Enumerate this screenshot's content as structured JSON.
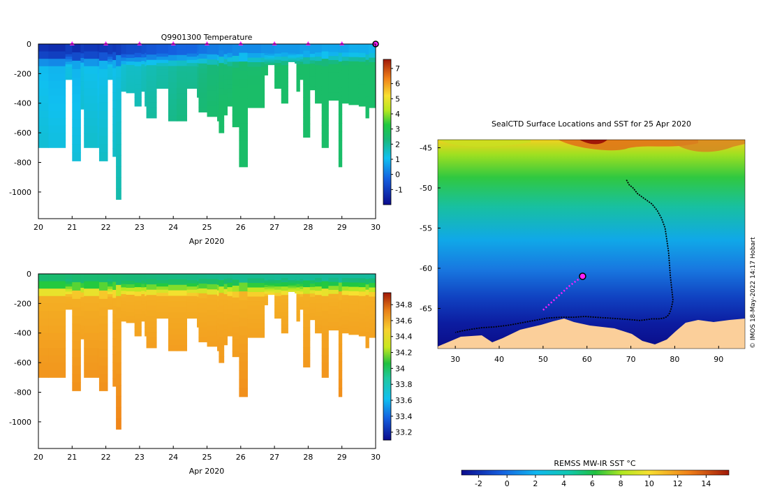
{
  "copyright": "© IMOS 18-May-2022 14:17 Hobart",
  "chart_data": [
    {
      "id": "temperature",
      "type": "heatmap",
      "title": "Q9901300  Temperature",
      "xlabel": "Apr 2020",
      "ylabel": "",
      "xlim": [
        20,
        30
      ],
      "ylim": [
        -1180,
        0
      ],
      "x_ticks": [
        "20",
        "21",
        "22",
        "23",
        "24",
        "25",
        "26",
        "27",
        "28",
        "29",
        "30"
      ],
      "y_ticks": [
        "0",
        "-200",
        "-400",
        "-600",
        "-800",
        "-1000"
      ],
      "y_tick_values": [
        0,
        -200,
        -400,
        -600,
        -800,
        -1000
      ],
      "surface_markers_day": [
        21,
        22,
        23,
        24,
        25,
        26,
        27,
        28,
        29
      ],
      "colorbar": {
        "min": -2,
        "max": 7.6,
        "ticks": [
          7,
          6,
          5,
          4,
          3,
          2,
          1,
          0,
          -1
        ]
      },
      "profiles": [
        {
          "day": 20.0,
          "depth": 700,
          "surface": -1.2
        },
        {
          "day": 20.3,
          "depth": 700,
          "surface": -1.3
        },
        {
          "day": 20.8,
          "depth": 240,
          "surface": -1.0
        },
        {
          "day": 21.0,
          "depth": 790,
          "surface": -1.3
        },
        {
          "day": 21.25,
          "depth": 440,
          "surface": -1.0
        },
        {
          "day": 21.35,
          "depth": 700,
          "surface": -1.1
        },
        {
          "day": 21.75,
          "depth": 700,
          "surface": -1.2
        },
        {
          "day": 21.8,
          "depth": 790,
          "surface": -1.1
        },
        {
          "day": 22.05,
          "depth": 240,
          "surface": -1.0
        },
        {
          "day": 22.2,
          "depth": 760,
          "surface": -1.1
        },
        {
          "day": 22.3,
          "depth": 1050,
          "surface": -1.0
        },
        {
          "day": 22.45,
          "depth": 320,
          "surface": -0.8
        },
        {
          "day": 22.6,
          "depth": 330,
          "surface": -0.7
        },
        {
          "day": 22.85,
          "depth": 420,
          "surface": -0.7
        },
        {
          "day": 23.05,
          "depth": 320,
          "surface": -0.6
        },
        {
          "day": 23.15,
          "depth": 420,
          "surface": -0.6
        },
        {
          "day": 23.2,
          "depth": 500,
          "surface": -0.5
        },
        {
          "day": 23.5,
          "depth": 300,
          "surface": -0.4
        },
        {
          "day": 23.85,
          "depth": 520,
          "surface": -0.3
        },
        {
          "day": 24.1,
          "depth": 520,
          "surface": -0.2
        },
        {
          "day": 24.4,
          "depth": 300,
          "surface": -0.2
        },
        {
          "day": 24.7,
          "depth": 360,
          "surface": -0.1
        },
        {
          "day": 24.75,
          "depth": 460,
          "surface": 0.0
        },
        {
          "day": 25.0,
          "depth": 490,
          "surface": 0.1
        },
        {
          "day": 25.3,
          "depth": 520,
          "surface": 0.1
        },
        {
          "day": 25.35,
          "depth": 600,
          "surface": 0.2
        },
        {
          "day": 25.5,
          "depth": 480,
          "surface": 0.2
        },
        {
          "day": 25.6,
          "depth": 420,
          "surface": 0.2
        },
        {
          "day": 25.75,
          "depth": 560,
          "surface": 0.3
        },
        {
          "day": 25.95,
          "depth": 830,
          "surface": 0.3
        },
        {
          "day": 26.2,
          "depth": 430,
          "surface": 0.3
        },
        {
          "day": 26.6,
          "depth": 430,
          "surface": 0.4
        },
        {
          "day": 26.7,
          "depth": 210,
          "surface": 0.4
        },
        {
          "day": 26.8,
          "depth": 140,
          "surface": 0.4
        },
        {
          "day": 27.0,
          "depth": 300,
          "surface": 0.5
        },
        {
          "day": 27.2,
          "depth": 400,
          "surface": 0.5
        },
        {
          "day": 27.4,
          "depth": 120,
          "surface": 0.5
        },
        {
          "day": 27.6,
          "depth": 130,
          "surface": 0.5
        },
        {
          "day": 27.65,
          "depth": 320,
          "surface": 0.5
        },
        {
          "day": 27.75,
          "depth": 240,
          "surface": 0.6
        },
        {
          "day": 27.85,
          "depth": 630,
          "surface": 0.6
        },
        {
          "day": 28.05,
          "depth": 310,
          "surface": 0.6
        },
        {
          "day": 28.2,
          "depth": 400,
          "surface": 0.6
        },
        {
          "day": 28.4,
          "depth": 700,
          "surface": 0.7
        },
        {
          "day": 28.6,
          "depth": 380,
          "surface": 0.7
        },
        {
          "day": 28.9,
          "depth": 830,
          "surface": 0.7
        },
        {
          "day": 29.0,
          "depth": 400,
          "surface": 0.7
        },
        {
          "day": 29.2,
          "depth": 410,
          "surface": 0.8
        },
        {
          "day": 29.5,
          "depth": 420,
          "surface": 0.8
        },
        {
          "day": 29.7,
          "depth": 500,
          "surface": 0.8
        },
        {
          "day": 29.8,
          "depth": 430,
          "surface": 0.9
        },
        {
          "day": 30.0,
          "depth": 410,
          "surface": 0.9
        }
      ]
    },
    {
      "id": "salinity",
      "type": "heatmap",
      "title": "",
      "xlabel": "Apr 2020",
      "ylabel": "",
      "xlim": [
        20,
        30
      ],
      "ylim": [
        -1180,
        0
      ],
      "x_ticks": [
        "20",
        "21",
        "22",
        "23",
        "24",
        "25",
        "26",
        "27",
        "28",
        "29",
        "30"
      ],
      "y_ticks": [
        "0",
        "-200",
        "-400",
        "-600",
        "-800",
        "-1000"
      ],
      "y_tick_values": [
        0,
        -200,
        -400,
        -600,
        -800,
        -1000
      ],
      "colorbar": {
        "min": 33.1,
        "max": 34.95,
        "ticks": [
          "34.8",
          "34.6",
          "34.4",
          "34.2",
          "34",
          "33.8",
          "33.6",
          "33.4",
          "33.2"
        ]
      }
    },
    {
      "id": "sst_map",
      "type": "heatmap",
      "title": "SealCTD Surface Locations and SST for 25 Apr 2020",
      "xlabel": "",
      "ylabel": "",
      "xlim": [
        26,
        96
      ],
      "ylim": [
        -70,
        -44
      ],
      "x_ticks": [
        "30",
        "40",
        "50",
        "60",
        "70",
        "80",
        "90"
      ],
      "x_tick_values": [
        30,
        40,
        50,
        60,
        70,
        80,
        90
      ],
      "y_ticks": [
        "-45",
        "-50",
        "-55",
        "-60",
        "-65"
      ],
      "y_tick_values": [
        -45,
        -50,
        -55,
        -60,
        -65
      ],
      "colorbar": {
        "label": "REMSS MW-IR SST °C",
        "min": -3.2,
        "max": 15.6,
        "ticks": [
          "-2",
          "0",
          "2",
          "4",
          "6",
          "8",
          "10",
          "12",
          "14"
        ],
        "tick_values": [
          -2,
          0,
          2,
          4,
          6,
          8,
          10,
          12,
          14
        ]
      },
      "track_lon": [
        69,
        69.6,
        70.5,
        71.5,
        73,
        74.8,
        76,
        77,
        77.8,
        78.2,
        78.6,
        78.8,
        79.0,
        79.3,
        79.6,
        79.2,
        78.8,
        78.3,
        77.5,
        76.3,
        74.8,
        73.5,
        72.0,
        70.0,
        67.5,
        65.0,
        62.0,
        59.5,
        57.0,
        54.0,
        51.0,
        48.0,
        45.0,
        42.0,
        39.0,
        36.0,
        33.5,
        31.5,
        30.0
      ],
      "track_lat": [
        -49.0,
        -49.6,
        -50.0,
        -50.7,
        -51.3,
        -52.0,
        -52.8,
        -53.8,
        -55.0,
        -56.5,
        -58.0,
        -59.5,
        -61.0,
        -62.5,
        -64.0,
        -65.0,
        -65.6,
        -66.0,
        -66.2,
        -66.3,
        -66.3,
        -66.4,
        -66.5,
        -66.4,
        -66.3,
        -66.2,
        -66.1,
        -66.0,
        -66.1,
        -66.1,
        -66.2,
        -66.5,
        -66.8,
        -67.1,
        -67.3,
        -67.4,
        -67.6,
        -67.8,
        -68.0
      ],
      "recent_track_lon": [
        50,
        51,
        52,
        53,
        54,
        55,
        56,
        57,
        58,
        59
      ],
      "recent_track_lat": [
        -65.2,
        -64.7,
        -64.2,
        -63.7,
        -63.2,
        -62.7,
        -62.2,
        -61.8,
        -61.4,
        -61.0
      ],
      "current_position": {
        "lon": 59,
        "lat": -61
      }
    }
  ]
}
